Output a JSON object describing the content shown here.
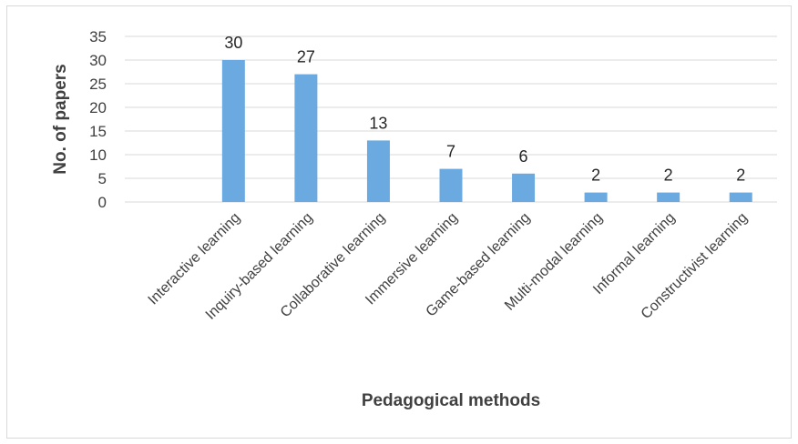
{
  "chart_data": {
    "type": "bar",
    "categories": [
      "",
      "Interactive learning",
      "Inquiry-based learning",
      "Collaborative learning",
      "Immersive learning",
      "Game-based learning",
      "Multi-modal learning",
      "Informal learning",
      "Constructivist learning"
    ],
    "values": [
      null,
      30,
      27,
      13,
      7,
      6,
      2,
      2,
      2
    ],
    "data_labels": [
      "",
      "30",
      "27",
      "13",
      "7",
      "6",
      "2",
      "2",
      "2"
    ],
    "xlabel": "Pedagogical methods",
    "ylabel": "No. of papers",
    "ylim": [
      0,
      35
    ],
    "yticks": [
      0,
      5,
      10,
      15,
      20,
      25,
      30,
      35
    ],
    "grid": true,
    "legend": "none",
    "bar_color": "#6aaae0",
    "grid_color": "#d9d9d9"
  }
}
